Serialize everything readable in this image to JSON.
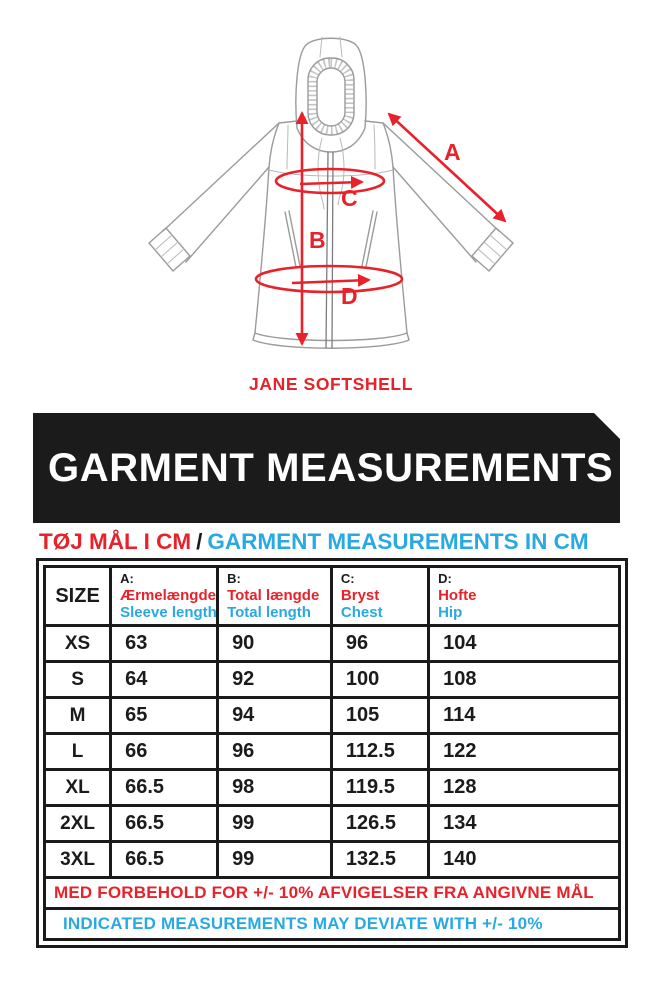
{
  "product": {
    "name": "JANE SOFTSHELL"
  },
  "diagram": {
    "labels": {
      "a": "A",
      "b": "B",
      "c": "C",
      "d": "D"
    }
  },
  "banner": {
    "title": "GARMENT MEASUREMENTS"
  },
  "subtitle": {
    "danish": "TØJ MÅL I CM",
    "separator": "/",
    "english": "GARMENT MEASUREMENTS IN CM"
  },
  "colors": {
    "red": "#e7222a",
    "blue": "#29a9e1",
    "black": "#1b1b1b"
  },
  "table": {
    "size_header": "SIZE",
    "columns": [
      {
        "key": "A:",
        "danish": "Ærmelængde",
        "english": "Sleeve length"
      },
      {
        "key": "B:",
        "danish": "Total længde",
        "english": "Total length"
      },
      {
        "key": "C:",
        "danish": "Bryst",
        "english": "Chest"
      },
      {
        "key": "D:",
        "danish": "Hofte",
        "english": "Hip"
      }
    ],
    "rows": [
      {
        "size": "XS",
        "a": "63",
        "b": "90",
        "c": "96",
        "d": "104"
      },
      {
        "size": "S",
        "a": "64",
        "b": "92",
        "c": "100",
        "d": "108"
      },
      {
        "size": "M",
        "a": "65",
        "b": "94",
        "c": "105",
        "d": "114"
      },
      {
        "size": "L",
        "a": "66",
        "b": "96",
        "c": "112.5",
        "d": "122"
      },
      {
        "size": "XL",
        "a": "66.5",
        "b": "98",
        "c": "119.5",
        "d": "128"
      },
      {
        "size": "2XL",
        "a": "66.5",
        "b": "99",
        "c": "126.5",
        "d": "134"
      },
      {
        "size": "3XL",
        "a": "66.5",
        "b": "99",
        "c": "132.5",
        "d": "140"
      }
    ],
    "footnote_danish": "MED FORBEHOLD FOR +/- 10% AFVIGELSER FRA ANGIVNE MÅL",
    "footnote_english": "INDICATED MEASUREMENTS MAY DEVIATE WITH +/- 10%"
  }
}
